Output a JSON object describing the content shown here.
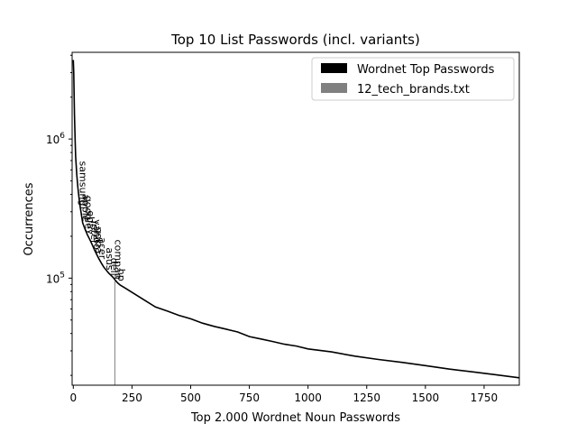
{
  "chart_data": {
    "type": "line",
    "title": "Top 10 List Passwords (incl. variants)",
    "xlabel": "Top 2.000 Wordnet Noun Passwords",
    "ylabel": "Occurrences",
    "xlim": [
      -5,
      1900
    ],
    "ylim": [
      17000,
      4200000
    ],
    "y_scale": "log",
    "grid": false,
    "legend_position": "top-right",
    "x_ticks": [
      0,
      250,
      500,
      750,
      1000,
      1250,
      1500,
      1750
    ],
    "x_tick_labels": [
      "0",
      "250",
      "500",
      "750",
      "1000",
      "1250",
      "1500",
      "1750"
    ],
    "y_ticks": [
      1000000,
      100000
    ],
    "y_tick_labels": [
      {
        "base": "10",
        "exp": "6"
      },
      {
        "base": "10",
        "exp": "5"
      }
    ],
    "series": [
      {
        "name": "Wordnet Top Passwords",
        "color": "#000000",
        "x": [
          0,
          2,
          5,
          8,
          10,
          15,
          20,
          25,
          30,
          40,
          50,
          60,
          70,
          80,
          90,
          100,
          110,
          120,
          130,
          150,
          170,
          180,
          190,
          200,
          220,
          250,
          300,
          350,
          400,
          450,
          500,
          550,
          600,
          650,
          700,
          750,
          800,
          850,
          900,
          950,
          1000,
          1100,
          1200,
          1300,
          1400,
          1500,
          1600,
          1700,
          1800,
          1900
        ],
        "y": [
          3700000,
          3000000,
          1500000,
          950000,
          750000,
          550000,
          440000,
          370000,
          320000,
          250000,
          225000,
          205000,
          190000,
          175000,
          160000,
          148000,
          137000,
          128000,
          120000,
          109000,
          101000,
          96000,
          92000,
          89000,
          85000,
          79000,
          70000,
          62000,
          58000,
          54000,
          51000,
          47500,
          45000,
          43000,
          41000,
          38000,
          36500,
          35000,
          33500,
          32500,
          31000,
          29500,
          27500,
          26000,
          24800,
          23500,
          22200,
          21200,
          20200,
          19200
        ]
      },
      {
        "name": "12_tech_brands.txt",
        "color": "#808080",
        "bars": [
          {
            "x": 177,
            "y": 96000
          }
        ]
      }
    ],
    "annotations": [
      {
        "text": "samsung",
        "x": 28,
        "y": 330000
      },
      {
        "text": "apple",
        "x": 39,
        "y": 255000
      },
      {
        "text": "google",
        "x": 50,
        "y": 225000
      },
      {
        "text": "ebay",
        "x": 60,
        "y": 205000
      },
      {
        "text": "intel",
        "x": 75,
        "y": 180000
      },
      {
        "text": "yahoo",
        "x": 87,
        "y": 160000
      },
      {
        "text": "nokia",
        "x": 95,
        "y": 150000
      },
      {
        "text": "acer",
        "x": 110,
        "y": 137000
      },
      {
        "text": "asus",
        "x": 140,
        "y": 114000
      },
      {
        "text": "dell",
        "x": 160,
        "y": 104000
      },
      {
        "text": "compaq",
        "x": 178,
        "y": 98000
      },
      {
        "text": "hp",
        "x": 190,
        "y": 95000
      }
    ]
  }
}
